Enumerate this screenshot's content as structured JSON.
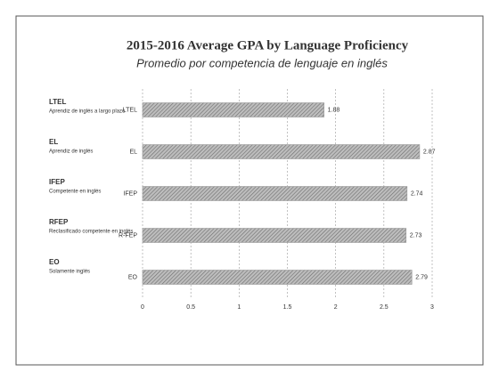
{
  "chart_data": {
    "type": "hbar",
    "title": "2015-2016 Average GPA by Language Proficiency",
    "subtitle": "Promedio por competencia de lenguaje en inglés",
    "categories": [
      "LTEL",
      "EL",
      "IFEP",
      "R-FEP",
      "EO"
    ],
    "values": [
      1.88,
      2.87,
      2.74,
      2.73,
      2.79
    ],
    "color": "#9a9a9a",
    "xlim": [
      0,
      3
    ],
    "xticks": [
      0,
      0.5,
      1,
      1.5,
      2,
      2.5,
      3
    ],
    "grid": true,
    "legend": [
      {
        "name": "LTEL",
        "description": "Aprendiz de inglés a largo plazo"
      },
      {
        "name": "EL",
        "description": "Aprendiz de inglés"
      },
      {
        "name": "IFEP",
        "description": "Competente en inglés"
      },
      {
        "name": "RFEP",
        "description": "Reclasificado competente en inglés"
      },
      {
        "name": "EO",
        "description": "Solamente inglés"
      }
    ]
  }
}
